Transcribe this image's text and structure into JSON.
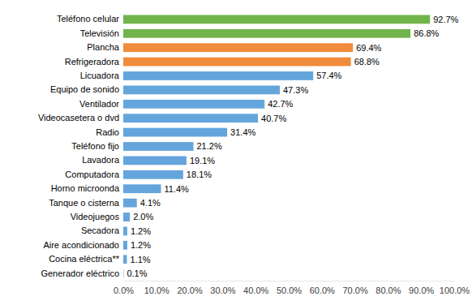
{
  "chart_data": {
    "type": "bar",
    "orientation": "horizontal",
    "categories": [
      "Teléfono celular",
      "Televisión",
      "Plancha",
      "Refrigeradora",
      "Licuadora",
      "Equipo de sonido",
      "Ventilador",
      "Videocasetera o dvd",
      "Radio",
      "Teléfono fijo",
      "Lavadora",
      "Computadora",
      "Horno microonda",
      "Tanque o cisterna",
      "Videojuegos",
      "Secadora",
      "Aire acondicionado",
      "Cocina eléctrica**",
      "Generador eléctrico"
    ],
    "values": [
      92.7,
      86.8,
      69.4,
      68.8,
      57.4,
      47.3,
      42.7,
      40.7,
      31.4,
      21.2,
      19.1,
      18.1,
      11.4,
      4.1,
      2.0,
      1.2,
      1.2,
      1.1,
      0.1
    ],
    "value_labels": [
      "92.7%",
      "86.8%",
      "69.4%",
      "68.8%",
      "57.4%",
      "47.3%",
      "42.7%",
      "40.7%",
      "31.4%",
      "21.2%",
      "19.1%",
      "18.1%",
      "11.4%",
      "4.1%",
      "2.0%",
      "1.2%",
      "1.2%",
      "1.1%",
      "0.1%"
    ],
    "colors": [
      "#72b44c",
      "#72b44c",
      "#f08c3c",
      "#f08c3c",
      "#64a5dc",
      "#64a5dc",
      "#64a5dc",
      "#64a5dc",
      "#64a5dc",
      "#64a5dc",
      "#64a5dc",
      "#64a5dc",
      "#64a5dc",
      "#64a5dc",
      "#64a5dc",
      "#64a5dc",
      "#64a5dc",
      "#64a5dc",
      "#64a5dc"
    ],
    "xlim": [
      0,
      100
    ],
    "xticks": [
      {
        "value": 0,
        "label": "0.0%"
      },
      {
        "value": 10,
        "label": "10.0%"
      },
      {
        "value": 20,
        "label": "20.0%"
      },
      {
        "value": 30,
        "label": "30.0%"
      },
      {
        "value": 40,
        "label": "40.0%"
      },
      {
        "value": 50,
        "label": "50.0%"
      },
      {
        "value": 60,
        "label": "60.0%"
      },
      {
        "value": 70,
        "label": "70.0%"
      },
      {
        "value": 80,
        "label": "80.0%"
      },
      {
        "value": 90,
        "label": "90.0%"
      },
      {
        "value": 100,
        "label": "100.0%"
      }
    ],
    "grid": false,
    "data_labels": true
  }
}
